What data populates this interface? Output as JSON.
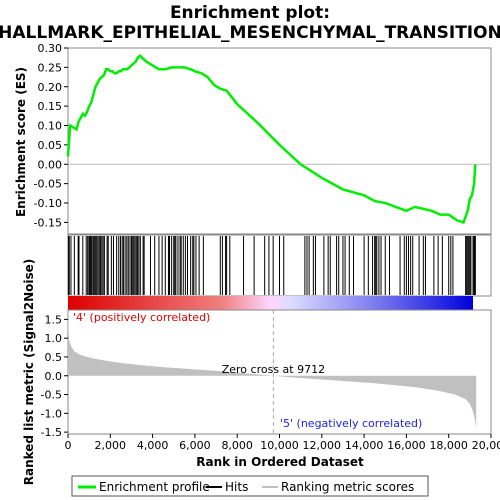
{
  "chart_data": {
    "type": "line",
    "title_line1": "Enrichment plot:",
    "title_line2": "HALLMARK_EPITHELIAL_MESENCHYMAL_TRANSITION",
    "es_panel": {
      "ylabel": "Enrichment score (ES)",
      "ylim": [
        -0.18,
        0.3
      ],
      "yticks": [
        "0.30",
        "0.25",
        "0.20",
        "0.15",
        "0.10",
        "0.05",
        "0.00",
        "-0.05",
        "-0.10",
        "-0.15"
      ],
      "ytick_values": [
        0.3,
        0.25,
        0.2,
        0.15,
        0.1,
        0.05,
        0.0,
        -0.05,
        -0.1,
        -0.15
      ],
      "series_color": "#00ee00",
      "x": [
        0,
        100,
        250,
        400,
        500,
        600,
        700,
        800,
        900,
        1000,
        1100,
        1200,
        1300,
        1400,
        1500,
        1600,
        1700,
        1800,
        1900,
        2000,
        2100,
        2200,
        2300,
        2400,
        2500,
        2600,
        2700,
        2800,
        2900,
        3000,
        3100,
        3200,
        3300,
        3400,
        3500,
        3700,
        4000,
        4300,
        4600,
        4900,
        5000,
        5200,
        5500,
        5800,
        6000,
        6300,
        6600,
        6900,
        7200,
        7500,
        8000,
        9000,
        10000,
        11000,
        12000,
        13000,
        14000,
        14500,
        15000,
        15500,
        16000,
        16400,
        16800,
        17200,
        17600,
        18000,
        18400,
        18700,
        18900,
        19000,
        19100,
        19200,
        19260
      ],
      "y": [
        0.02,
        0.1,
        0.095,
        0.09,
        0.11,
        0.12,
        0.13,
        0.125,
        0.135,
        0.15,
        0.16,
        0.18,
        0.2,
        0.21,
        0.22,
        0.225,
        0.23,
        0.245,
        0.245,
        0.24,
        0.24,
        0.235,
        0.235,
        0.24,
        0.24,
        0.245,
        0.245,
        0.245,
        0.25,
        0.255,
        0.26,
        0.265,
        0.275,
        0.28,
        0.275,
        0.265,
        0.255,
        0.245,
        0.245,
        0.25,
        0.25,
        0.25,
        0.25,
        0.245,
        0.24,
        0.235,
        0.225,
        0.205,
        0.195,
        0.19,
        0.155,
        0.105,
        0.05,
        0.0,
        -0.035,
        -0.065,
        -0.08,
        -0.095,
        -0.1,
        -0.11,
        -0.12,
        -0.11,
        -0.115,
        -0.12,
        -0.13,
        -0.13,
        -0.145,
        -0.15,
        -0.12,
        -0.09,
        -0.08,
        -0.05,
        0.0
      ]
    },
    "metric_panel": {
      "ylabel": "Ranked list metric (Signal2Noise)",
      "ylim": [
        -1.55,
        1.75
      ],
      "yticks": [
        "1.5",
        "1.0",
        "0.5",
        "0.0",
        "-0.5",
        "-1.0",
        "-1.5"
      ],
      "ytick_values": [
        1.5,
        1.0,
        0.5,
        0.0,
        -0.5,
        -1.0,
        -1.5
      ],
      "zero_cross_label": "Zero cross at 9712",
      "zero_cross": 9712,
      "pos_label": "'4' (positively correlated)",
      "neg_label": "'5' (negatively correlated)",
      "pos_color": "#dd0000",
      "neg_color": "#0000dd",
      "x": [
        0,
        50,
        150,
        300,
        500,
        800,
        1200,
        1800,
        2500,
        3500,
        4500,
        5500,
        6500,
        7500,
        8500,
        9712,
        10500,
        11500,
        12500,
        13500,
        14500,
        15500,
        16500,
        17500,
        18300,
        18800,
        19000,
        19150,
        19250,
        19300
      ],
      "y": [
        1.72,
        0.95,
        0.78,
        0.65,
        0.58,
        0.52,
        0.46,
        0.4,
        0.34,
        0.28,
        0.23,
        0.19,
        0.15,
        0.11,
        0.06,
        0.0,
        -0.04,
        -0.08,
        -0.12,
        -0.16,
        -0.2,
        -0.25,
        -0.31,
        -0.4,
        -0.5,
        -0.62,
        -0.75,
        -0.95,
        -1.2,
        -1.4
      ]
    },
    "hits": [
      20,
      60,
      140,
      300,
      480,
      520,
      700,
      860,
      930,
      990,
      1040,
      1090,
      1140,
      1200,
      1260,
      1310,
      1360,
      1420,
      1480,
      1540,
      1600,
      1660,
      1720,
      1850,
      1900,
      2050,
      2150,
      2300,
      2400,
      2480,
      2560,
      2620,
      2700,
      2780,
      2850,
      2930,
      3000,
      3060,
      3110,
      3170,
      3230,
      3290,
      3350,
      3420,
      3550,
      3600,
      3900,
      4100,
      4300,
      4450,
      4600,
      4750,
      4800,
      4900,
      5000,
      5050,
      5100,
      5200,
      5300,
      5350,
      5450,
      5550,
      5650,
      5800,
      5900,
      5950,
      6050,
      6200,
      6400,
      7200,
      7300,
      7450,
      7500,
      7650,
      8300,
      8800,
      9300,
      9500,
      9700,
      10000,
      10200,
      11200,
      11300,
      11400,
      11600,
      11700,
      12100,
      12300,
      12400,
      12700,
      12800,
      13000,
      13100,
      13300,
      13500,
      14000,
      14200,
      14400,
      14500,
      14550,
      14600,
      14700,
      14800,
      15000,
      15200,
      15700,
      15900,
      16000,
      16100,
      16200,
      16300,
      16600,
      16800,
      16900,
      17300,
      17500,
      17700,
      18000,
      18100,
      18200,
      18800,
      18850,
      18900,
      18950,
      19000,
      19050,
      19150,
      19200,
      19230,
      19260
    ],
    "xlabel": "Rank in Ordered Dataset",
    "xlim": [
      0,
      20000
    ],
    "xticks": [
      "0",
      "2,000",
      "4,000",
      "6,000",
      "8,000",
      "10,000",
      "12,000",
      "14,000",
      "16,000",
      "18,000",
      "20,000"
    ],
    "xtick_values": [
      0,
      2000,
      4000,
      6000,
      8000,
      10000,
      12000,
      14000,
      16000,
      18000,
      20000
    ],
    "list_size": 19300,
    "legend": {
      "enrichment_profile": "Enrichment profile",
      "hits": "Hits",
      "ranking_metric_scores": "Ranking metric scores"
    }
  }
}
